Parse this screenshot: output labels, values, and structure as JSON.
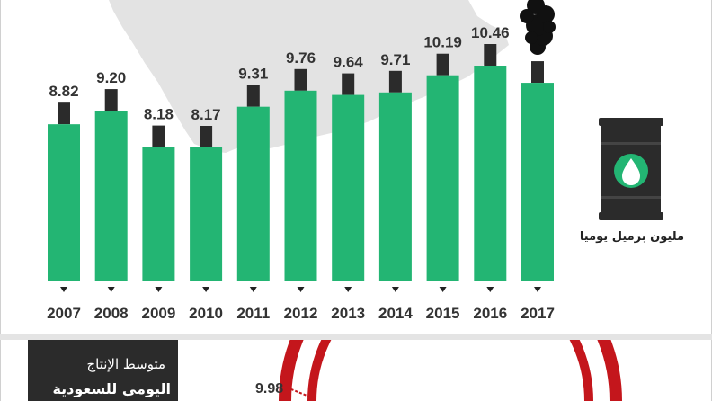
{
  "chart_data": {
    "type": "bar",
    "categories": [
      "2007",
      "2008",
      "2009",
      "2010",
      "2011",
      "2012",
      "2013",
      "2014",
      "2015",
      "2016",
      "2017"
    ],
    "values": [
      8.82,
      9.2,
      8.18,
      8.17,
      9.31,
      9.76,
      9.64,
      9.71,
      10.19,
      10.46,
      9.98
    ],
    "value_labels": [
      "8.82",
      "9.20",
      "8.18",
      "8.17",
      "9.31",
      "9.76",
      "9.64",
      "9.71",
      "10.19",
      "10.46",
      ""
    ],
    "ylabel": "مليون برميل يوميا",
    "grid": false
  },
  "colors": {
    "bar": "#23b573",
    "cap": "#2b2b2b",
    "map": "#e3e3e3",
    "smoke": "#111111",
    "gauge_ring": "#c4161c",
    "gauge_dot": "#c4161c"
  },
  "icons": {
    "barrel": "oil-barrel-icon",
    "drop": "oil-drop-icon",
    "smoke": "smoke-icon"
  },
  "average": {
    "line1": "متوسط الإنتاج",
    "line2": "اليومي للسعودية",
    "value": "9.98"
  }
}
